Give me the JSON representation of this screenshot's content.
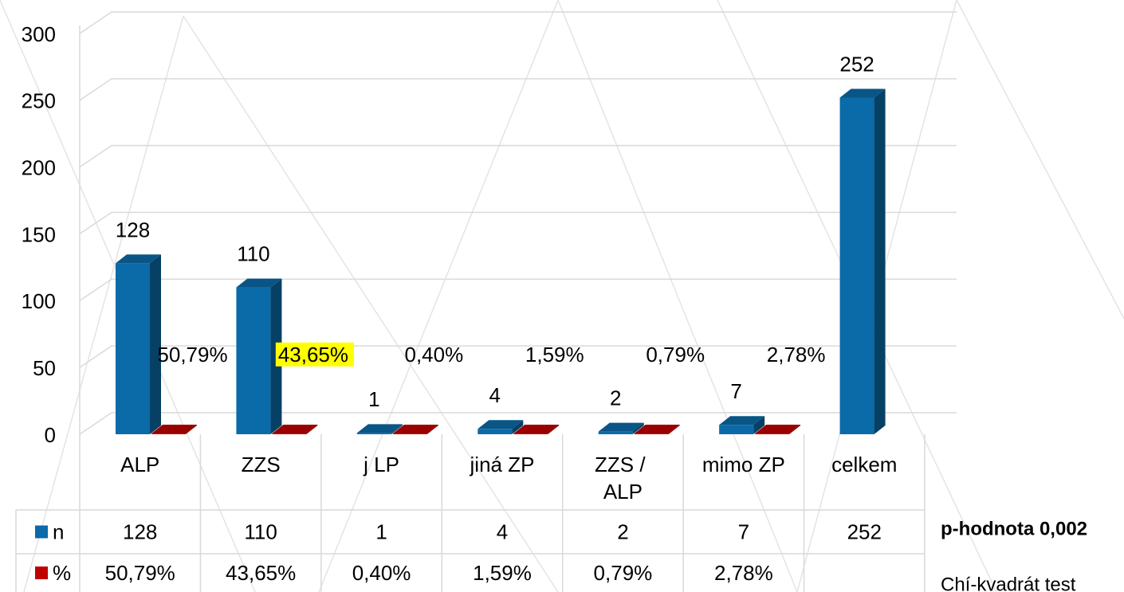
{
  "chart_data": {
    "type": "bar3d",
    "categories": [
      "ALP",
      "ZZS",
      "j LP",
      "jiná ZP",
      "ZZS / ALP",
      "mimo ZP",
      "celkem"
    ],
    "series": [
      {
        "name": "n",
        "color": "#0b6aa8",
        "values": [
          128,
          110,
          1,
          4,
          2,
          7,
          252
        ]
      },
      {
        "name": "%",
        "color": "#c00000",
        "values": [
          0.5079,
          0.4365,
          0.004,
          0.0159,
          0.0079,
          0.0278,
          null
        ],
        "value_labels": [
          "50,79%",
          "43,65%",
          "0,40%",
          "1,59%",
          "0,79%",
          "2,78%",
          null
        ]
      }
    ],
    "ylim": [
      0,
      300
    ],
    "yticks": [
      0,
      50,
      100,
      150,
      200,
      250,
      300
    ],
    "grid": true,
    "highlight": {
      "series": 1,
      "index": 1,
      "color": "#ffff00"
    },
    "annotations": [
      "p-hodnota 0,002",
      "Chí-kvadrát test"
    ]
  }
}
